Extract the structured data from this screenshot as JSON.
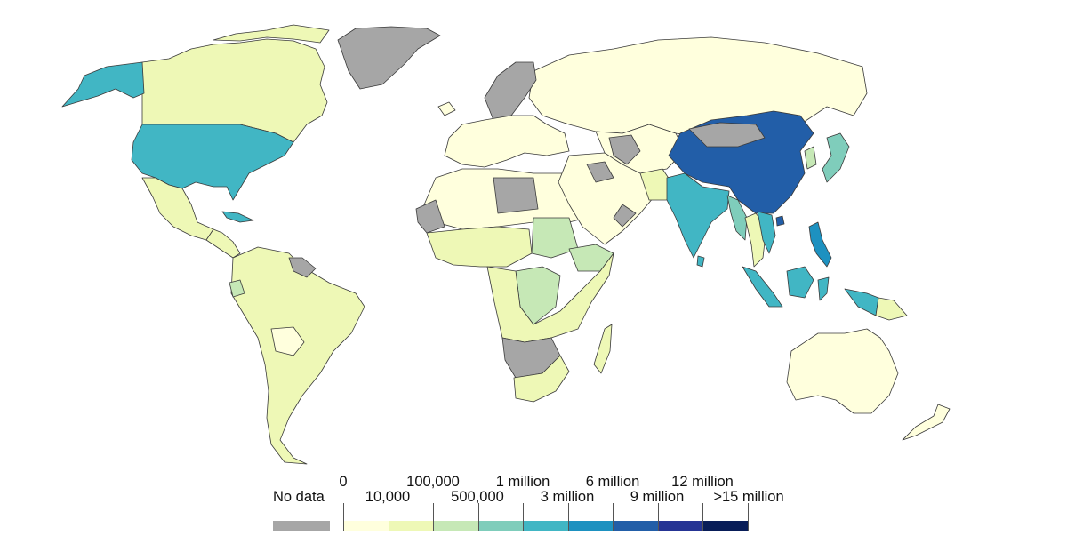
{
  "legend": {
    "no_data_label": "No data",
    "no_data_color": "#a6a6a6",
    "top_labels": [
      "0",
      "100,000",
      "1 million",
      "6 million",
      "12 million"
    ],
    "bottom_labels": [
      "10,000",
      "500,000",
      "3 million",
      "9 million",
      ">15 million"
    ],
    "bins": [
      {
        "color": "#ffffdd"
      },
      {
        "color": "#eef8b6"
      },
      {
        "color": "#c6e8b6"
      },
      {
        "color": "#7fcdbb"
      },
      {
        "color": "#41b6c4"
      },
      {
        "color": "#1d91c0"
      },
      {
        "color": "#225ea8"
      },
      {
        "color": "#253494"
      },
      {
        "color": "#081d58"
      }
    ]
  },
  "regions": [
    {
      "name": "canada",
      "color": "#eef8b6"
    },
    {
      "name": "greenland",
      "color": "#a6a6a6"
    },
    {
      "name": "alaska",
      "color": "#41b6c4"
    },
    {
      "name": "united-states",
      "color": "#41b6c4"
    },
    {
      "name": "mexico",
      "color": "#eef8b6"
    },
    {
      "name": "central-america",
      "color": "#eef8b6"
    },
    {
      "name": "cuba",
      "color": "#41b6c4"
    },
    {
      "name": "south-america",
      "color": "#eef8b6"
    },
    {
      "name": "guianas",
      "color": "#a6a6a6"
    },
    {
      "name": "ecuador",
      "color": "#c6e8b6"
    },
    {
      "name": "bolivia",
      "color": "#ffffdd"
    },
    {
      "name": "russia",
      "color": "#ffffdd"
    },
    {
      "name": "scandinavia",
      "color": "#a6a6a6"
    },
    {
      "name": "europe",
      "color": "#ffffdd"
    },
    {
      "name": "iceland",
      "color": "#ffffdd"
    },
    {
      "name": "north-africa",
      "color": "#ffffdd"
    },
    {
      "name": "libya",
      "color": "#a6a6a6"
    },
    {
      "name": "west-sahara",
      "color": "#a6a6a6"
    },
    {
      "name": "west-africa",
      "color": "#eef8b6"
    },
    {
      "name": "sudan",
      "color": "#c6e8b6"
    },
    {
      "name": "ethiopia",
      "color": "#c6e8b6"
    },
    {
      "name": "dr-congo",
      "color": "#c6e8b6"
    },
    {
      "name": "central-africa",
      "color": "#eef8b6"
    },
    {
      "name": "southern-africa",
      "color": "#a6a6a6"
    },
    {
      "name": "south-africa",
      "color": "#eef8b6"
    },
    {
      "name": "madagascar",
      "color": "#eef8b6"
    },
    {
      "name": "middle-east",
      "color": "#ffffdd"
    },
    {
      "name": "arabia-gaps",
      "color": "#a6a6a6"
    },
    {
      "name": "central-asia",
      "color": "#ffffdd"
    },
    {
      "name": "central-asia-gaps",
      "color": "#a6a6a6"
    },
    {
      "name": "pakistan",
      "color": "#eef8b6"
    },
    {
      "name": "india",
      "color": "#41b6c4"
    },
    {
      "name": "sri-lanka",
      "color": "#41b6c4"
    },
    {
      "name": "china",
      "color": "#225ea8"
    },
    {
      "name": "hainan",
      "color": "#225ea8"
    },
    {
      "name": "mongolia",
      "color": "#a6a6a6"
    },
    {
      "name": "myanmar",
      "color": "#7fcdbb"
    },
    {
      "name": "thailand-laos",
      "color": "#eef8b6"
    },
    {
      "name": "vietnam",
      "color": "#41b6c4"
    },
    {
      "name": "korea",
      "color": "#c6e8b6"
    },
    {
      "name": "japan",
      "color": "#7fcdbb"
    },
    {
      "name": "philippines",
      "color": "#1d91c0"
    },
    {
      "name": "sumatra",
      "color": "#41b6c4"
    },
    {
      "name": "borneo",
      "color": "#41b6c4"
    },
    {
      "name": "sulawesi",
      "color": "#41b6c4"
    },
    {
      "name": "new-guinea-west",
      "color": "#41b6c4"
    },
    {
      "name": "papua-new-guinea",
      "color": "#eef8b6"
    },
    {
      "name": "australia",
      "color": "#ffffdd"
    },
    {
      "name": "new-zealand",
      "color": "#ffffdd"
    }
  ]
}
